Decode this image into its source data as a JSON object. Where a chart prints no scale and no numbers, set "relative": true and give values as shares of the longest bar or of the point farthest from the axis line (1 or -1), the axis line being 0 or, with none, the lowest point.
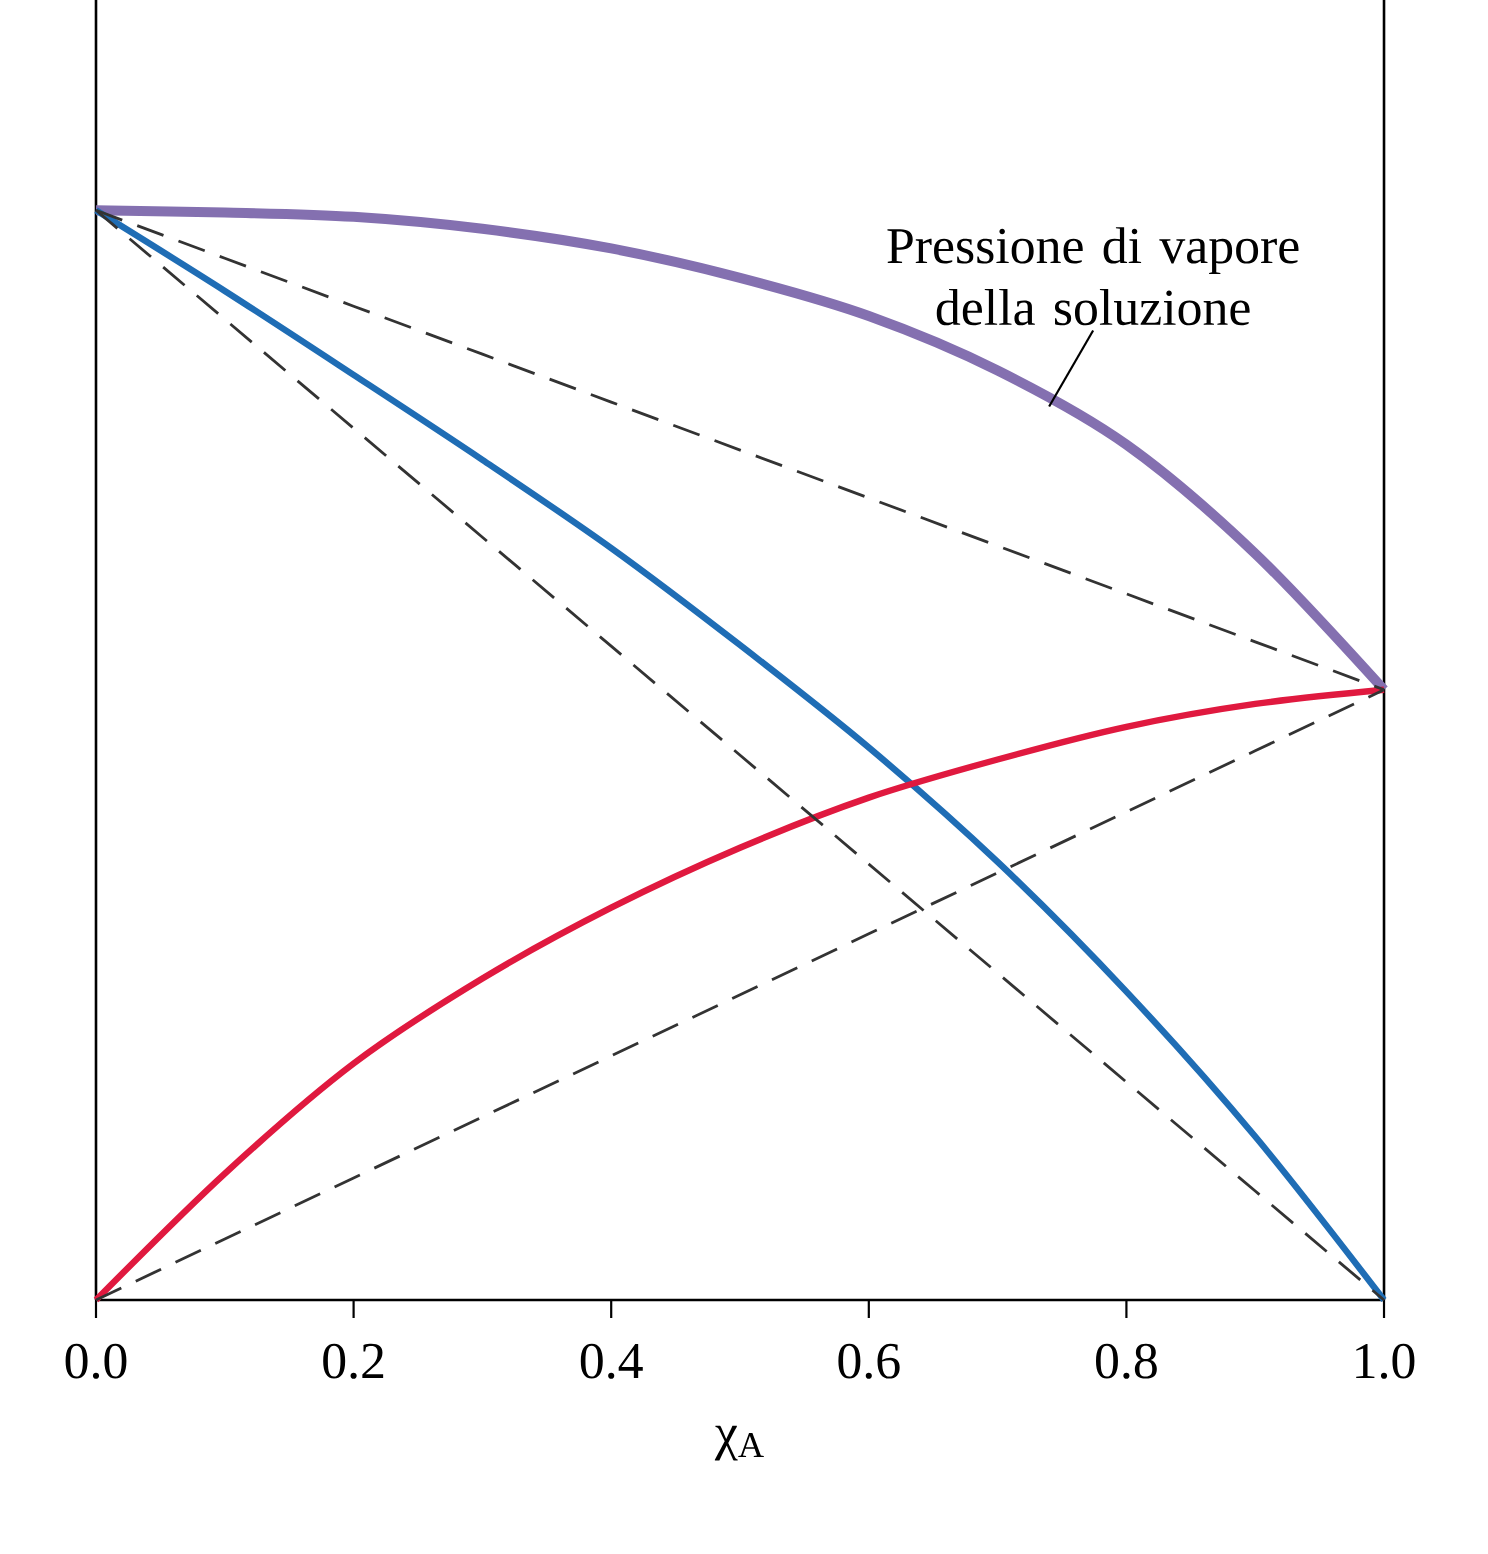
{
  "chart_data": {
    "type": "line",
    "relative": true,
    "xlabel": "χ$_{A}$",
    "x": [
      0,
      0.1,
      0.2,
      0.3,
      0.4,
      0.5,
      0.6,
      0.7,
      0.8,
      0.9,
      1.0
    ],
    "xlim": [
      0,
      1
    ],
    "xticks": [
      {
        "value": 0,
        "label": "0.0"
      },
      0.2,
      0.4,
      0.6,
      0.8,
      {
        "value": 1,
        "label": "1.0"
      }
    ],
    "grid": false,
    "marker": "none",
    "series": [
      {
        "color": "#8470b0",
        "values": [
          1.0,
          0.998,
          0.994,
          0.983,
          0.965,
          0.938,
          0.903,
          0.853,
          0.785,
          0.685,
          0.56
        ]
      },
      {
        "color": "#1f6db5",
        "values": [
          1.0,
          0.926,
          0.849,
          0.771,
          0.69,
          0.601,
          0.507,
          0.402,
          0.283,
          0.15,
          0.0
        ]
      },
      {
        "color": "#e0193f",
        "values": [
          0.0,
          0.116,
          0.217,
          0.295,
          0.36,
          0.415,
          0.461,
          0.496,
          0.526,
          0.547,
          0.56
        ]
      },
      {
        "color": "#333333",
        "line_style": "dashed",
        "values": [
          1.0,
          0.9,
          0.8,
          0.7,
          0.6,
          0.5,
          0.4,
          0.3,
          0.2,
          0.1,
          0.0
        ]
      },
      {
        "color": "#333333",
        "line_style": "dashed",
        "values": [
          0.0,
          0.056,
          0.112,
          0.168,
          0.224,
          0.28,
          0.336,
          0.392,
          0.448,
          0.504,
          0.56
        ]
      },
      {
        "color": "#333333",
        "line_style": "dashed",
        "values": [
          1.0,
          0.956,
          0.912,
          0.868,
          0.824,
          0.78,
          0.736,
          0.692,
          0.648,
          0.604,
          0.56
        ]
      }
    ],
    "annotations": [
      {
        "text": "Pressione di vapore della soluzione",
        "x": 0.74,
        "y": 0.82
      }
    ]
  }
}
